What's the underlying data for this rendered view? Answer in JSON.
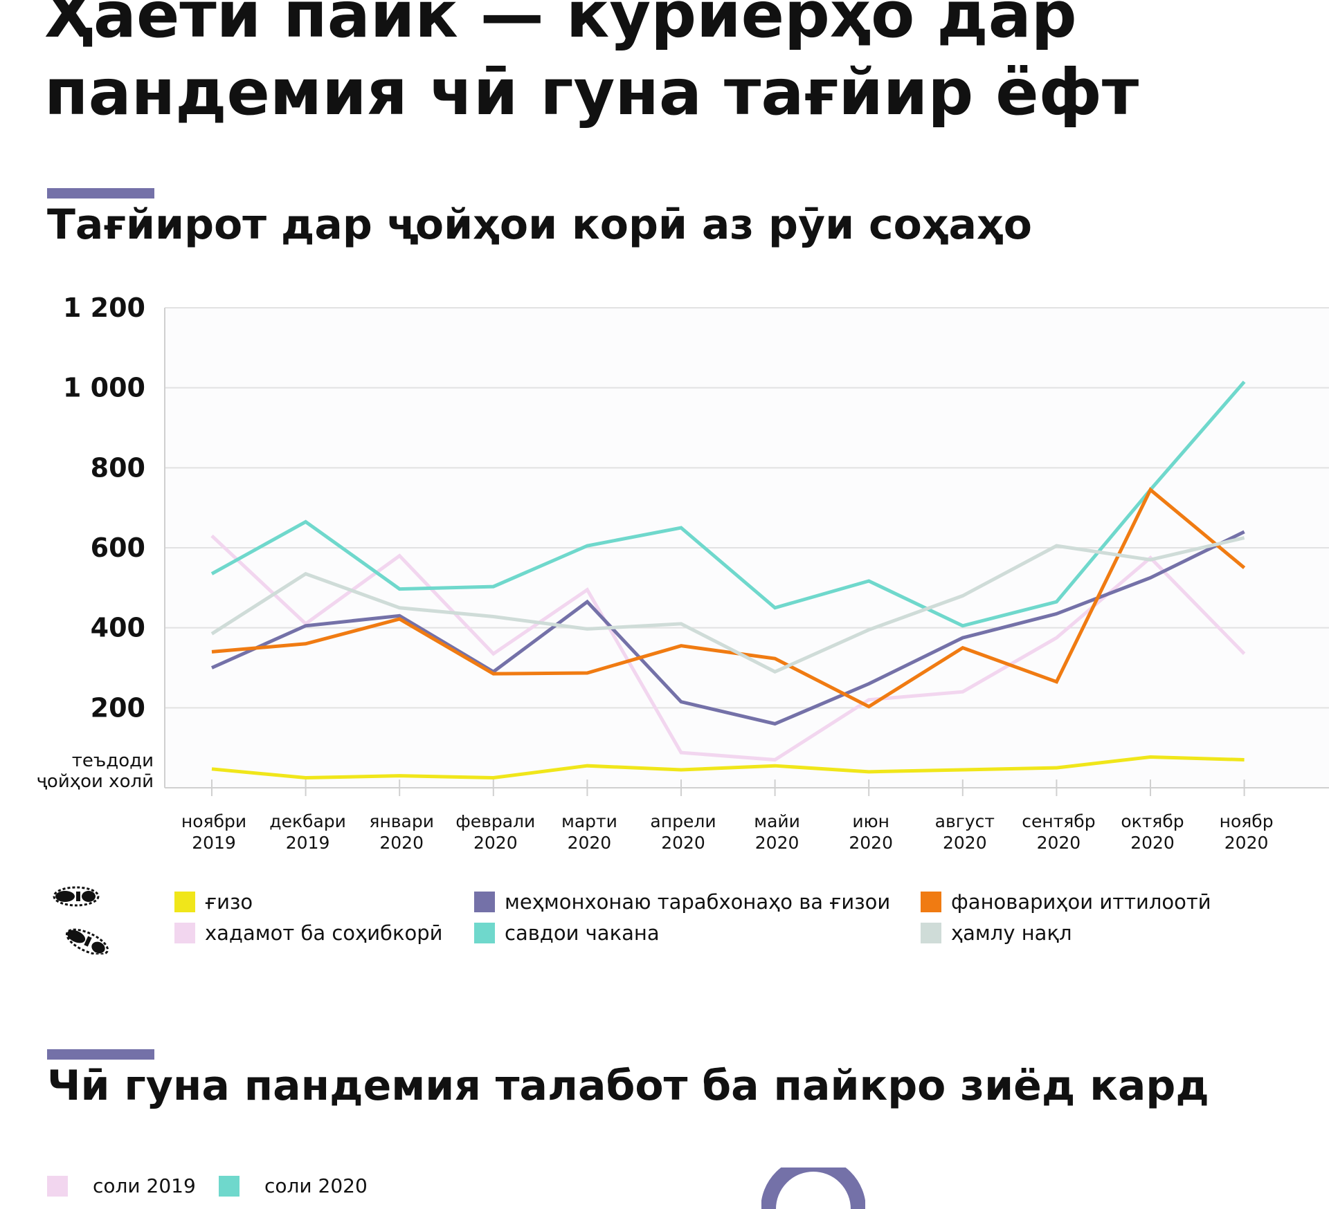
{
  "header": {
    "title": "Ҳаёти пайк — курйерҳо дар\nпандемия чӣ гуна тағйир ёфт"
  },
  "section1": {
    "heading": "Тағйирот дар ҷойҳои корӣ аз рӯи соҳаҳо"
  },
  "section2": {
    "heading": "Чӣ гуна пандемия талабот ба пайкро зиёд кард",
    "legend": [
      {
        "label": "соли 2019",
        "color": "#f2d6ef"
      },
      {
        "label": "соли 2020",
        "color": "#6fd8cc"
      }
    ]
  },
  "colors": {
    "accent": "#7471a8",
    "grid": "#e2e2e2"
  },
  "icons": [
    "footprints-icon",
    "donut-icon"
  ],
  "chart_data": {
    "type": "line",
    "yticks": [
      "1 200",
      "1 000",
      "800",
      "600",
      "400",
      "200"
    ],
    "ytick_values": [
      1200,
      1000,
      800,
      600,
      400,
      200
    ],
    "ybase_label": "теъдоди\nҷойҳои холӣ",
    "ylim": [
      0,
      1200
    ],
    "grid": true,
    "legend_position": "bottom",
    "categories": [
      "ноябри\n2019",
      "декбари\n2019",
      "январи\n2020",
      "феврали\n2020",
      "марти\n2020",
      "апрели\n2020",
      "майи\n2020",
      "июн\n2020",
      "август\n2020",
      "сентябр\n2020",
      "октябр\n2020",
      "ноябр\n2020"
    ],
    "series": [
      {
        "name": "ғизо",
        "color": "#f0e61a",
        "values": [
          47,
          25,
          30,
          25,
          55,
          45,
          55,
          40,
          45,
          50,
          77,
          70
        ]
      },
      {
        "name": "хадамот ба соҳибкорӣ",
        "color": "#f2d6ef",
        "values": [
          630,
          410,
          580,
          335,
          495,
          88,
          70,
          220,
          240,
          375,
          575,
          335
        ]
      },
      {
        "name": "меҳмонхонаю тарабхонаҳо ва ғизои",
        "color": "#7471a8",
        "values": [
          300,
          405,
          430,
          290,
          465,
          215,
          160,
          260,
          375,
          435,
          525,
          640
        ]
      },
      {
        "name": "савдои чакана",
        "color": "#6fd8cc",
        "values": [
          535,
          665,
          497,
          503,
          605,
          650,
          450,
          517,
          405,
          465,
          745,
          1015
        ]
      },
      {
        "name": "фановариҳои иттилоотӣ",
        "color": "#f07b12",
        "values": [
          340,
          360,
          422,
          285,
          287,
          355,
          323,
          203,
          350,
          265,
          745,
          550
        ]
      },
      {
        "name": "ҳамлу нақл",
        "color": "#cfdcd8",
        "values": [
          385,
          535,
          450,
          428,
          397,
          410,
          290,
          395,
          480,
          605,
          570,
          625
        ]
      }
    ]
  }
}
